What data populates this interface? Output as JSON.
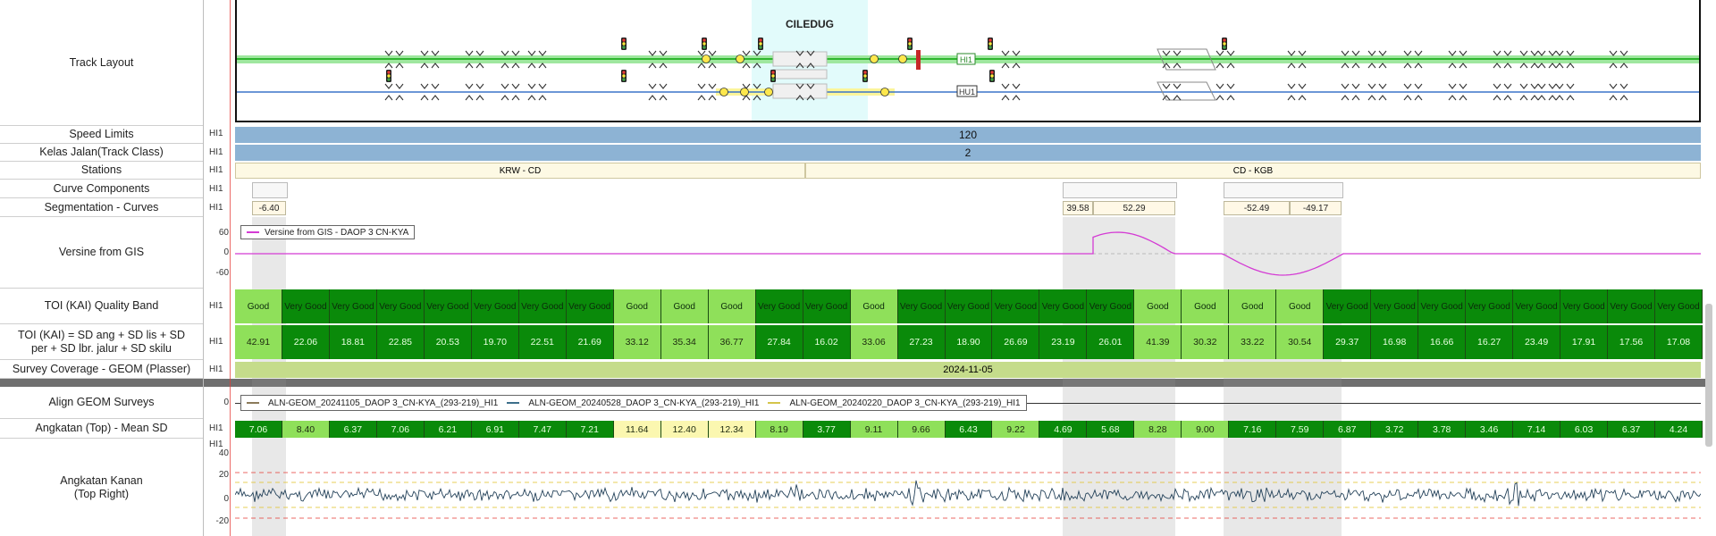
{
  "station_name": "CILEDUG",
  "track_layout": {
    "label": "Track Layout",
    "signal_tag_upper": "HI1",
    "signal_tag_lower": "HU1"
  },
  "row_tag": "HI1",
  "rows": {
    "speed_limits": {
      "label": "Speed Limits",
      "value": "120"
    },
    "track_class": {
      "label": "Kelas Jalan(Track Class)",
      "value": "2"
    },
    "stations": {
      "label": "Stations",
      "segments": [
        "KRW - CD",
        "CD - KGB"
      ]
    },
    "curve_components": {
      "label": "Curve Components"
    },
    "segmentation_curves": {
      "label": "Segmentation - Curves",
      "values": [
        "-6.40",
        "39.58",
        "52.29",
        "-52.49",
        "-49.17"
      ]
    },
    "versine": {
      "label": "Versine from GIS",
      "legend": "Versine from GIS - DAOP 3 CN-KYA",
      "yticks": [
        "60",
        "0",
        "-60"
      ]
    },
    "toi_band": {
      "label": "TOI (KAI) Quality Band"
    },
    "toi_formula": {
      "label": "TOI (KAI) = SD ang + SD lis + SD per + SD lbr. jalur + SD skilu"
    },
    "survey_coverage": {
      "label": "Survey Coverage - GEOM (Plasser)",
      "value": "2024-11-05"
    },
    "align_geom": {
      "label": "Align GEOM Surveys",
      "ytick": "0",
      "legend": [
        "ALN-GEOM_20241105_DAOP 3_CN-KYA_(293-219)_HI1",
        "ALN-GEOM_20240528_DAOP 3_CN-KYA_(293-219)_HI1",
        "ALN-GEOM_20240220_DAOP 3_CN-KYA_(293-219)_HI1"
      ],
      "legend_colors": [
        "#8b7b5a",
        "#3d6f8a",
        "#d4c44a"
      ]
    },
    "angkatan_mean": {
      "label": "Angkatan (Top) - Mean SD"
    },
    "angkatan_kanan": {
      "label_line1": "Angkatan Kanan",
      "label_line2": "(Top Right)",
      "yticks": [
        "40",
        "20",
        "0",
        "-20"
      ]
    }
  },
  "toi_cells": [
    {
      "band": "Good",
      "value": "42.91",
      "level": "good"
    },
    {
      "band": "Very Good",
      "value": "22.06",
      "level": "vgood"
    },
    {
      "band": "Very Good",
      "value": "18.81",
      "level": "vgood"
    },
    {
      "band": "Very Good",
      "value": "22.85",
      "level": "vgood"
    },
    {
      "band": "Very Good",
      "value": "20.53",
      "level": "vgood"
    },
    {
      "band": "Very Good",
      "value": "19.70",
      "level": "vgood"
    },
    {
      "band": "Very Good",
      "value": "22.51",
      "level": "vgood"
    },
    {
      "band": "Very Good",
      "value": "21.69",
      "level": "vgood"
    },
    {
      "band": "Good",
      "value": "33.12",
      "level": "good"
    },
    {
      "band": "Good",
      "value": "35.34",
      "level": "good"
    },
    {
      "band": "Good",
      "value": "36.77",
      "level": "good"
    },
    {
      "band": "Very Good",
      "value": "27.84",
      "level": "vgood"
    },
    {
      "band": "Very Good",
      "value": "16.02",
      "level": "vgood"
    },
    {
      "band": "Good",
      "value": "33.06",
      "level": "good"
    },
    {
      "band": "Very Good",
      "value": "27.23",
      "level": "vgood"
    },
    {
      "band": "Very Good",
      "value": "18.90",
      "level": "vgood"
    },
    {
      "band": "Very Good",
      "value": "26.69",
      "level": "vgood"
    },
    {
      "band": "Very Good",
      "value": "23.19",
      "level": "vgood"
    },
    {
      "band": "Very Good",
      "value": "26.01",
      "level": "vgood"
    },
    {
      "band": "Good",
      "value": "41.39",
      "level": "good"
    },
    {
      "band": "Good",
      "value": "30.32",
      "level": "good"
    },
    {
      "band": "Good",
      "value": "33.22",
      "level": "good"
    },
    {
      "band": "Good",
      "value": "30.54",
      "level": "good"
    },
    {
      "band": "Very Good",
      "value": "29.37",
      "level": "vgood"
    },
    {
      "band": "Very Good",
      "value": "16.98",
      "level": "vgood"
    },
    {
      "band": "Very Good",
      "value": "16.66",
      "level": "vgood"
    },
    {
      "band": "Very Good",
      "value": "16.27",
      "level": "vgood"
    },
    {
      "band": "Very Good",
      "value": "23.49",
      "level": "vgood"
    },
    {
      "band": "Very Good",
      "value": "17.91",
      "level": "vgood"
    },
    {
      "band": "Very Good",
      "value": "17.56",
      "level": "vgood"
    },
    {
      "band": "Very Good",
      "value": "17.08",
      "level": "vgood"
    }
  ],
  "angkatan_cells": [
    {
      "value": "7.06",
      "level": "dark"
    },
    {
      "value": "8.40",
      "level": "mid"
    },
    {
      "value": "6.37",
      "level": "dark"
    },
    {
      "value": "7.06",
      "level": "dark"
    },
    {
      "value": "6.21",
      "level": "dark"
    },
    {
      "value": "6.91",
      "level": "dark"
    },
    {
      "value": "7.47",
      "level": "dark"
    },
    {
      "value": "7.21",
      "level": "dark"
    },
    {
      "value": "11.64",
      "level": "yellow"
    },
    {
      "value": "12.40",
      "level": "yellow"
    },
    {
      "value": "12.34",
      "level": "yellow"
    },
    {
      "value": "8.19",
      "level": "mid"
    },
    {
      "value": "3.77",
      "level": "dark"
    },
    {
      "value": "9.11",
      "level": "mid"
    },
    {
      "value": "9.66",
      "level": "mid"
    },
    {
      "value": "6.43",
      "level": "dark"
    },
    {
      "value": "9.22",
      "level": "mid"
    },
    {
      "value": "4.69",
      "level": "dark"
    },
    {
      "value": "5.68",
      "level": "dark"
    },
    {
      "value": "8.28",
      "level": "mid"
    },
    {
      "value": "9.00",
      "level": "mid"
    },
    {
      "value": "7.16",
      "level": "dark"
    },
    {
      "value": "7.59",
      "level": "dark"
    },
    {
      "value": "6.87",
      "level": "dark"
    },
    {
      "value": "3.72",
      "level": "dark"
    },
    {
      "value": "3.78",
      "level": "dark"
    },
    {
      "value": "3.46",
      "level": "dark"
    },
    {
      "value": "7.14",
      "level": "dark"
    },
    {
      "value": "6.03",
      "level": "dark"
    },
    {
      "value": "6.37",
      "level": "dark"
    },
    {
      "value": "4.24",
      "level": "dark"
    }
  ],
  "colors": {
    "very_good": "#0a8a0a",
    "good": "#8fe05a",
    "yellow": "#fbf7b0",
    "speed_bar": "#8db3d4",
    "track_class_bar": "#8db3d4",
    "station_bar": "#fdf9e4",
    "survey_bar": "#c5dc8b",
    "track_green": "#7ee07e",
    "track_blue": "#3b74c8",
    "versine": "#d43bd4"
  }
}
